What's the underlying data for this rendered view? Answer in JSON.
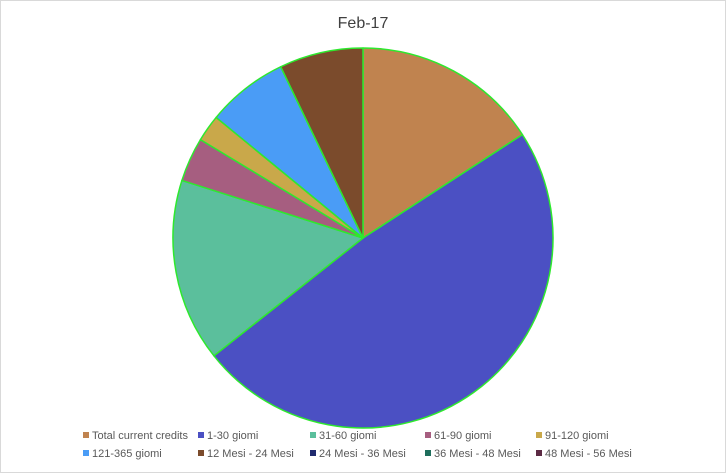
{
  "chart_data": {
    "type": "pie",
    "title": "Feb-17",
    "categories": [
      "Total current credits",
      "1-30 giomi",
      "31-60 giomi",
      "61-90 giomi",
      "91-120 giomi",
      "121-365 giomi",
      "12 Mesi - 24 Mesi",
      "24 Mesi - 36 Mesi",
      "36 Mesi - 48 Mesi",
      "48 Mesi - 56 Mesi"
    ],
    "values": [
      16.0,
      49.0,
      15.7,
      3.8,
      2.3,
      7.0,
      7.2,
      0,
      0,
      0
    ],
    "colors": [
      "#C0834F",
      "#4B50C3",
      "#5BBF9C",
      "#A65E80",
      "#C9A84A",
      "#4A9CF6",
      "#7B4B2C",
      "#1F2A6E",
      "#1E6E5C",
      "#5C2A44"
    ],
    "slice_outline": "#2EE82E",
    "start_angle_deg": 0,
    "direction": "clockwise",
    "legend": "bottom"
  }
}
